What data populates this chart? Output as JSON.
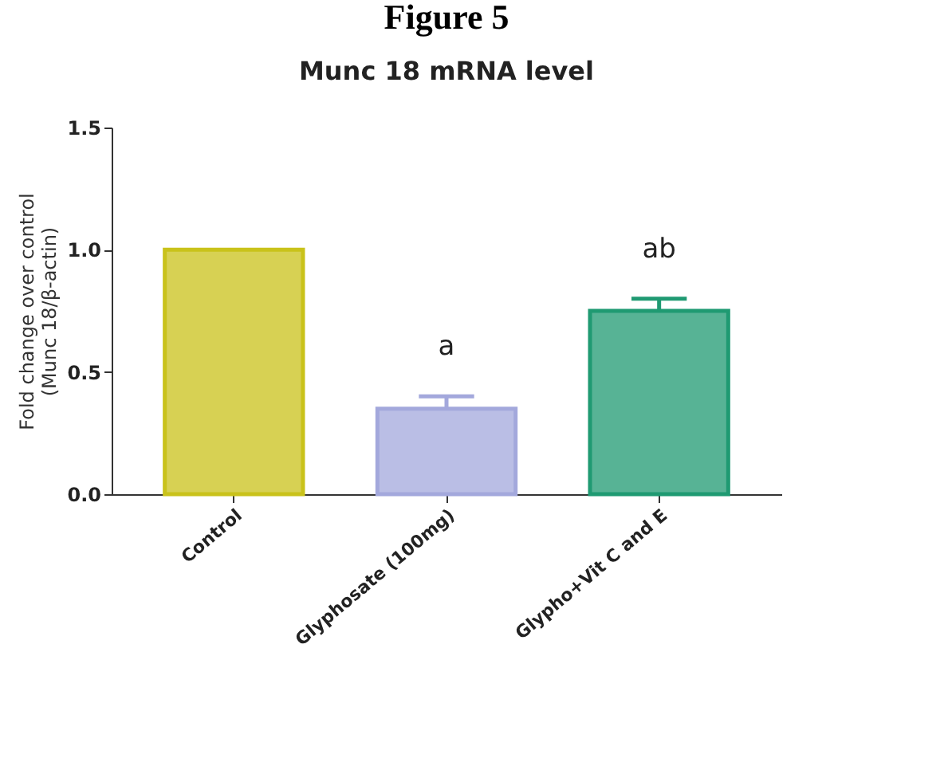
{
  "chart_data": {
    "type": "bar",
    "title": "Figure 5",
    "subtitle": "Munc 18 mRNA level",
    "ylabel": "Fold change over control\n(Munc 18/β-actin)",
    "categories": [
      "Control",
      "Glyphosate (100mg)",
      "Glypho+Vit C and E"
    ],
    "values": [
      1.0,
      0.35,
      0.75
    ],
    "errors": [
      null,
      0.05,
      0.05
    ],
    "colors": [
      "#c9c21a",
      "#a3a8dc",
      "#1f9a72"
    ],
    "ylim": [
      0,
      1.5
    ],
    "yticks": [
      {
        "value": 0,
        "label": "0.0"
      },
      {
        "value": 0.5,
        "label": "0.5"
      },
      {
        "value": 1,
        "label": "1.0"
      },
      {
        "value": 1.5,
        "label": "1.5"
      }
    ],
    "annotations": [
      {
        "text": "a",
        "x": "Glyphosate (100mg)",
        "y": 0.4
      },
      {
        "text": "ab",
        "x": "Glypho+Vit C and E",
        "y": 0.8
      }
    ]
  }
}
